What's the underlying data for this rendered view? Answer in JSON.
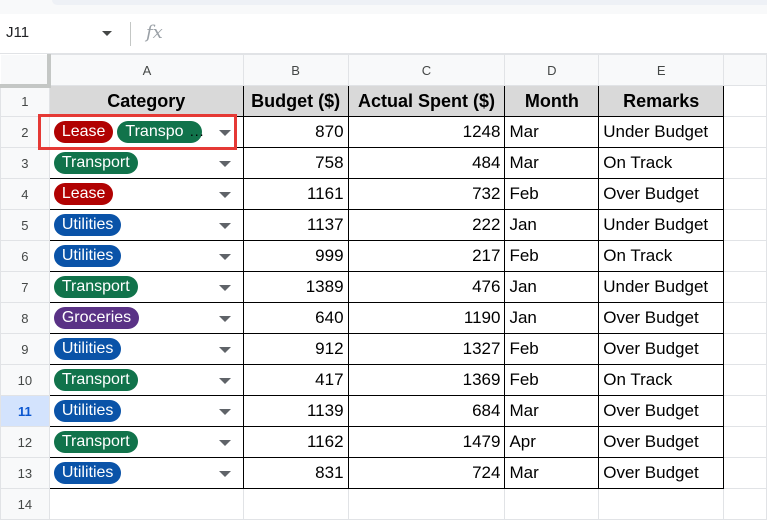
{
  "namebox": {
    "value": "J11"
  },
  "formula_bar": {
    "fx_label": "fx",
    "value": ""
  },
  "columns": [
    "A",
    "B",
    "C",
    "D",
    "E"
  ],
  "row_numbers": [
    "1",
    "2",
    "3",
    "4",
    "5",
    "6",
    "7",
    "8",
    "9",
    "10",
    "11",
    "12",
    "13",
    "14"
  ],
  "selected_row": "11",
  "headers": {
    "category": "Category",
    "budget": "Budget ($)",
    "actual": "Actual Spent ($)",
    "month": "Month",
    "remarks": "Remarks"
  },
  "rows": [
    {
      "chips": [
        "Lease",
        "Transpo"
      ],
      "truncated": true,
      "budget": "870",
      "actual": "1248",
      "month": "Mar",
      "remarks": "Under Budget"
    },
    {
      "chips": [
        "Transport"
      ],
      "budget": "758",
      "actual": "484",
      "month": "Mar",
      "remarks": "On Track"
    },
    {
      "chips": [
        "Lease"
      ],
      "budget": "1161",
      "actual": "732",
      "month": "Feb",
      "remarks": "Over Budget"
    },
    {
      "chips": [
        "Utilities"
      ],
      "budget": "1137",
      "actual": "222",
      "month": "Jan",
      "remarks": "Under Budget"
    },
    {
      "chips": [
        "Utilities"
      ],
      "budget": "999",
      "actual": "217",
      "month": "Feb",
      "remarks": "On Track"
    },
    {
      "chips": [
        "Transport"
      ],
      "budget": "1389",
      "actual": "476",
      "month": "Jan",
      "remarks": "Under Budget"
    },
    {
      "chips": [
        "Groceries"
      ],
      "budget": "640",
      "actual": "1190",
      "month": "Jan",
      "remarks": "Over Budget"
    },
    {
      "chips": [
        "Utilities"
      ],
      "budget": "912",
      "actual": "1327",
      "month": "Feb",
      "remarks": "Over Budget"
    },
    {
      "chips": [
        "Transport"
      ],
      "budget": "417",
      "actual": "1369",
      "month": "Feb",
      "remarks": "On Track"
    },
    {
      "chips": [
        "Utilities"
      ],
      "budget": "1139",
      "actual": "684",
      "month": "Mar",
      "remarks": "Over Budget"
    },
    {
      "chips": [
        "Transport"
      ],
      "budget": "1162",
      "actual": "1479",
      "month": "Apr",
      "remarks": "Over Budget"
    },
    {
      "chips": [
        "Utilities"
      ],
      "budget": "831",
      "actual": "724",
      "month": "Mar",
      "remarks": "Over Budget"
    }
  ],
  "ellipsis": "...",
  "chip_colors": {
    "Lease": "#b10202",
    "Transport": "#11734b",
    "Utilities": "#0a53a8",
    "Groceries": "#5a3286"
  }
}
